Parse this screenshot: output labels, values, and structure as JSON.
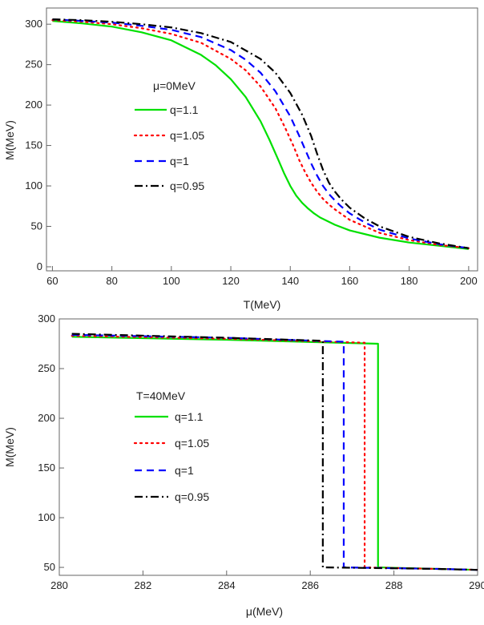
{
  "chart_data": [
    {
      "type": "line",
      "xlabel": "T(MeV)",
      "ylabel": "M(MeV)",
      "xlim": [
        58,
        203
      ],
      "ylim": [
        -5,
        320
      ],
      "xticks": [
        60,
        80,
        100,
        120,
        140,
        160,
        180,
        200
      ],
      "yticks": [
        0,
        50,
        100,
        150,
        200,
        250,
        300
      ],
      "legend": {
        "title": "μ=0MeV",
        "placement": "center-left"
      },
      "series": [
        {
          "name": "q=1.1",
          "color": "#00e000",
          "dash": "solid",
          "x": [
            60,
            70,
            80,
            90,
            100,
            110,
            115,
            120,
            125,
            130,
            133,
            136,
            138,
            140,
            142,
            144,
            146,
            148,
            150,
            155,
            160,
            170,
            180,
            190,
            200
          ],
          "y": [
            304,
            301,
            297,
            290,
            280,
            262,
            249,
            232,
            210,
            180,
            157,
            132,
            115,
            100,
            88,
            79,
            72,
            66,
            61,
            52,
            45,
            36,
            30,
            26,
            22
          ]
        },
        {
          "name": "q=1.05",
          "color": "#ff0000",
          "dash": "dotted",
          "x": [
            60,
            70,
            80,
            90,
            100,
            110,
            120,
            125,
            130,
            135,
            138,
            141,
            143,
            145,
            147,
            149,
            151,
            153,
            155,
            160,
            170,
            180,
            190,
            200
          ],
          "y": [
            305,
            303,
            300,
            295,
            288,
            277,
            257,
            243,
            223,
            196,
            174,
            150,
            132,
            117,
            104,
            93,
            84,
            77,
            71,
            58,
            42,
            33,
            27,
            23
          ]
        },
        {
          "name": "q=1",
          "color": "#0000ff",
          "dash": "dashed",
          "x": [
            60,
            70,
            80,
            90,
            100,
            110,
            120,
            125,
            130,
            135,
            140,
            143,
            145,
            147,
            149,
            151,
            153,
            155,
            157,
            160,
            165,
            170,
            180,
            190,
            200
          ],
          "y": [
            306,
            304,
            302,
            298,
            293,
            284,
            268,
            256,
            240,
            217,
            186,
            162,
            145,
            128,
            113,
            100,
            90,
            82,
            75,
            66,
            55,
            46,
            35,
            28,
            23
          ]
        },
        {
          "name": "q=0.95",
          "color": "#000000",
          "dash": "dashdot",
          "x": [
            60,
            70,
            80,
            90,
            100,
            110,
            120,
            130,
            135,
            140,
            144,
            147,
            149,
            151,
            153,
            155,
            157,
            160,
            165,
            170,
            180,
            190,
            200
          ],
          "y": [
            306,
            305,
            303,
            300,
            296,
            289,
            278,
            257,
            240,
            215,
            188,
            162,
            140,
            120,
            104,
            93,
            84,
            73,
            60,
            50,
            37,
            29,
            23
          ]
        }
      ]
    },
    {
      "type": "line",
      "xlabel": "μ(MeV)",
      "ylabel": "M(MeV)",
      "xlim": [
        280,
        290
      ],
      "ylim": [
        42,
        300
      ],
      "xticks": [
        280,
        282,
        284,
        286,
        288,
        290
      ],
      "yticks": [
        50,
        100,
        150,
        200,
        250,
        300
      ],
      "legend": {
        "title": "T=40MeV",
        "placement": "center-left"
      },
      "series": [
        {
          "name": "q=1.1",
          "color": "#00e000",
          "dash": "solid",
          "x": [
            280.3,
            284,
            287.62,
            287.62,
            289,
            290
          ],
          "y": [
            282,
            279,
            275,
            50,
            48.5,
            47.5
          ]
        },
        {
          "name": "q=1.05",
          "color": "#ff0000",
          "dash": "dotted",
          "x": [
            280.3,
            284,
            287.3,
            287.3,
            289,
            290
          ],
          "y": [
            283,
            280,
            276,
            50,
            48.5,
            47.5
          ]
        },
        {
          "name": "q=1",
          "color": "#0000ff",
          "dash": "dashed",
          "x": [
            280.3,
            284,
            286.8,
            286.8,
            289,
            290
          ],
          "y": [
            284,
            281,
            277,
            50,
            48.5,
            47.5
          ]
        },
        {
          "name": "q=0.95",
          "color": "#000000",
          "dash": "dashdot",
          "x": [
            280.3,
            284,
            286.3,
            286.3,
            289,
            290
          ],
          "y": [
            285,
            281,
            278,
            50,
            48.5,
            47.5
          ]
        }
      ]
    }
  ]
}
